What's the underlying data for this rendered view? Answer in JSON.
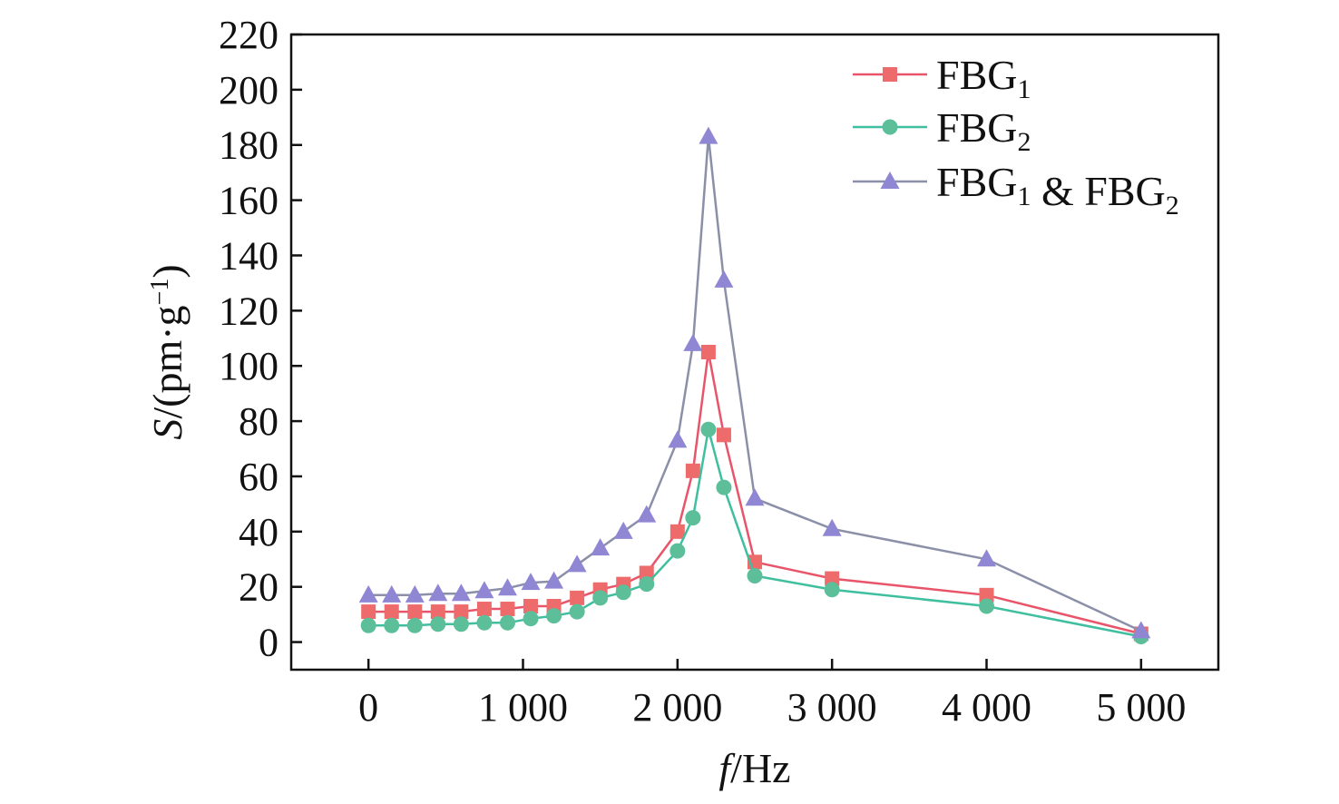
{
  "chart_data": {
    "type": "line",
    "title": "",
    "xlabel": {
      "var": "f",
      "unit": "/Hz"
    },
    "ylabel": {
      "var": "S",
      "unit": "/(pm·g",
      "sup": "−1",
      "close": ")"
    },
    "xlim": [
      -500,
      5500
    ],
    "ylim": [
      -10,
      220
    ],
    "xticks": [
      0,
      1000,
      2000,
      3000,
      4000,
      5000
    ],
    "xtick_labels": [
      "0",
      "1 000",
      "2 000",
      "3 000",
      "4 000",
      "5 000"
    ],
    "yticks": [
      0,
      20,
      40,
      60,
      80,
      100,
      120,
      140,
      160,
      180,
      200,
      220
    ],
    "ytick_labels": [
      "0",
      "20",
      "40",
      "60",
      "80",
      "100",
      "120",
      "140",
      "160",
      "180",
      "200",
      "220"
    ],
    "legend_position": "top-right",
    "series": [
      {
        "name": "FBG₁",
        "legend_parts": [
          {
            "t": "FBG"
          },
          {
            "t": "1",
            "sub": true
          }
        ],
        "color": "#e8556a",
        "marker_color": "#ee6b6b",
        "marker": "square",
        "x": [
          0,
          150,
          300,
          450,
          600,
          750,
          900,
          1050,
          1200,
          1350,
          1500,
          1650,
          1800,
          2000,
          2100,
          2200,
          2300,
          2500,
          3000,
          4000,
          5000
        ],
        "y": [
          11,
          11,
          11,
          11,
          11,
          12,
          12,
          13,
          13,
          16,
          19,
          21,
          25,
          40,
          62,
          105,
          75,
          29,
          23,
          17,
          3
        ]
      },
      {
        "name": "FBG₂",
        "legend_parts": [
          {
            "t": "FBG"
          },
          {
            "t": "2",
            "sub": true
          }
        ],
        "color": "#3fbf9f",
        "marker_color": "#5cbf9a",
        "marker": "circle",
        "x": [
          0,
          150,
          300,
          450,
          600,
          750,
          900,
          1050,
          1200,
          1350,
          1500,
          1650,
          1800,
          2000,
          2100,
          2200,
          2300,
          2500,
          3000,
          4000,
          5000
        ],
        "y": [
          6,
          6,
          6,
          6.5,
          6.5,
          7,
          7,
          8.5,
          9.5,
          11,
          16,
          18,
          21,
          33,
          45,
          77,
          56,
          24,
          19,
          13,
          2
        ]
      },
      {
        "name": "FBG₁ & FBG₂",
        "legend_parts": [
          {
            "t": "FBG"
          },
          {
            "t": "1",
            "sub": true
          },
          {
            "t": " & FBG"
          },
          {
            "t": "2",
            "sub": true
          }
        ],
        "color": "#8b8fa8",
        "marker_color": "#8f86d4",
        "marker": "triangle",
        "x": [
          0,
          150,
          300,
          450,
          600,
          750,
          900,
          1050,
          1200,
          1350,
          1500,
          1650,
          1800,
          2000,
          2100,
          2200,
          2300,
          2500,
          3000,
          4000,
          5000
        ],
        "y": [
          17,
          17,
          17,
          17.5,
          17.5,
          18.5,
          19.5,
          21.5,
          22,
          28,
          34,
          40,
          46,
          73,
          108,
          183,
          131,
          52,
          41,
          30,
          4
        ]
      }
    ]
  }
}
